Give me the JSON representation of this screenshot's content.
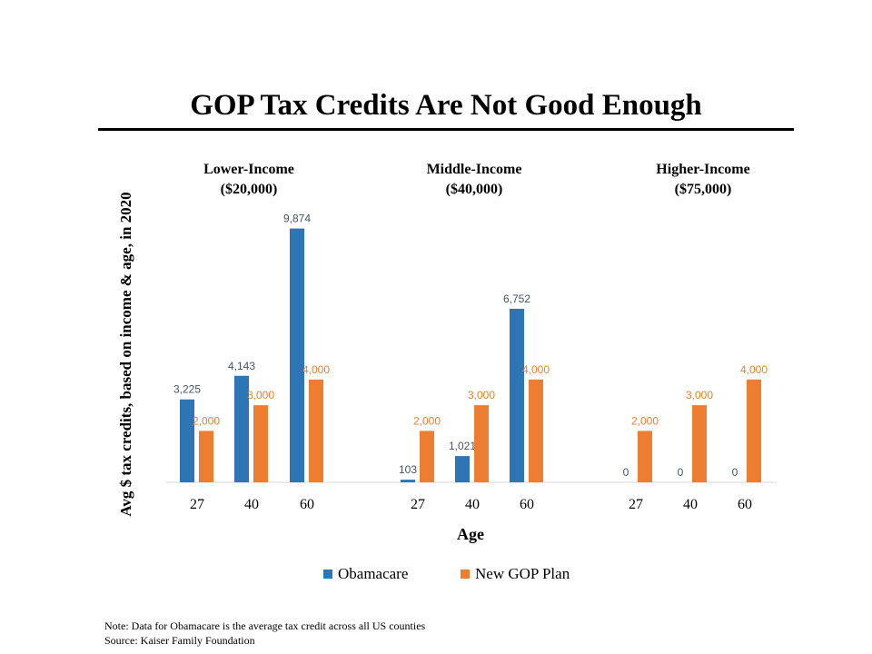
{
  "chart_data": {
    "type": "bar",
    "title": "GOP Tax Credits Are Not Good Enough",
    "ylabel": "Avg $ tax credits, based on income & age, in 2020",
    "xlabel": "Age",
    "ylim": [
      0,
      10000
    ],
    "grid": false,
    "legend_position": "bottom",
    "groups": [
      {
        "title": [
          "Lower-Income",
          "($20,000)"
        ],
        "categories": [
          "27",
          "40",
          "60"
        ],
        "series": [
          {
            "name": "Obamacare",
            "values": [
              3225,
              4143,
              9874
            ],
            "labels": [
              "3,225",
              "4,143",
              "9,874"
            ]
          },
          {
            "name": "New GOP Plan",
            "values": [
              2000,
              3000,
              4000
            ],
            "labels": [
              "2,000",
              "3,000",
              "4,000"
            ]
          }
        ]
      },
      {
        "title": [
          "Middle-Income",
          "($40,000)"
        ],
        "categories": [
          "27",
          "40",
          "60"
        ],
        "series": [
          {
            "name": "Obamacare",
            "values": [
              103,
              1021,
              6752
            ],
            "labels": [
              "103",
              "1,021",
              "6,752"
            ]
          },
          {
            "name": "New GOP Plan",
            "values": [
              2000,
              3000,
              4000
            ],
            "labels": [
              "2,000",
              "3,000",
              "4,000"
            ]
          }
        ]
      },
      {
        "title": [
          "Higher-Income",
          "($75,000)"
        ],
        "categories": [
          "27",
          "40",
          "60"
        ],
        "series": [
          {
            "name": "Obamacare",
            "values": [
              0,
              0,
              0
            ],
            "labels": [
              "0",
              "0",
              "0"
            ]
          },
          {
            "name": "New GOP Plan",
            "values": [
              2000,
              3000,
              4000
            ],
            "labels": [
              "2,000",
              "3,000",
              "4,000"
            ]
          }
        ]
      }
    ],
    "legend": [
      {
        "name": "Obamacare",
        "color": "#2e75b6"
      },
      {
        "name": "New GOP Plan",
        "color": "#ed7d31"
      }
    ]
  },
  "notes": [
    "Note: Data for Obamacare is the average tax credit across all US counties",
    "Source: Kaiser Family Foundation"
  ]
}
